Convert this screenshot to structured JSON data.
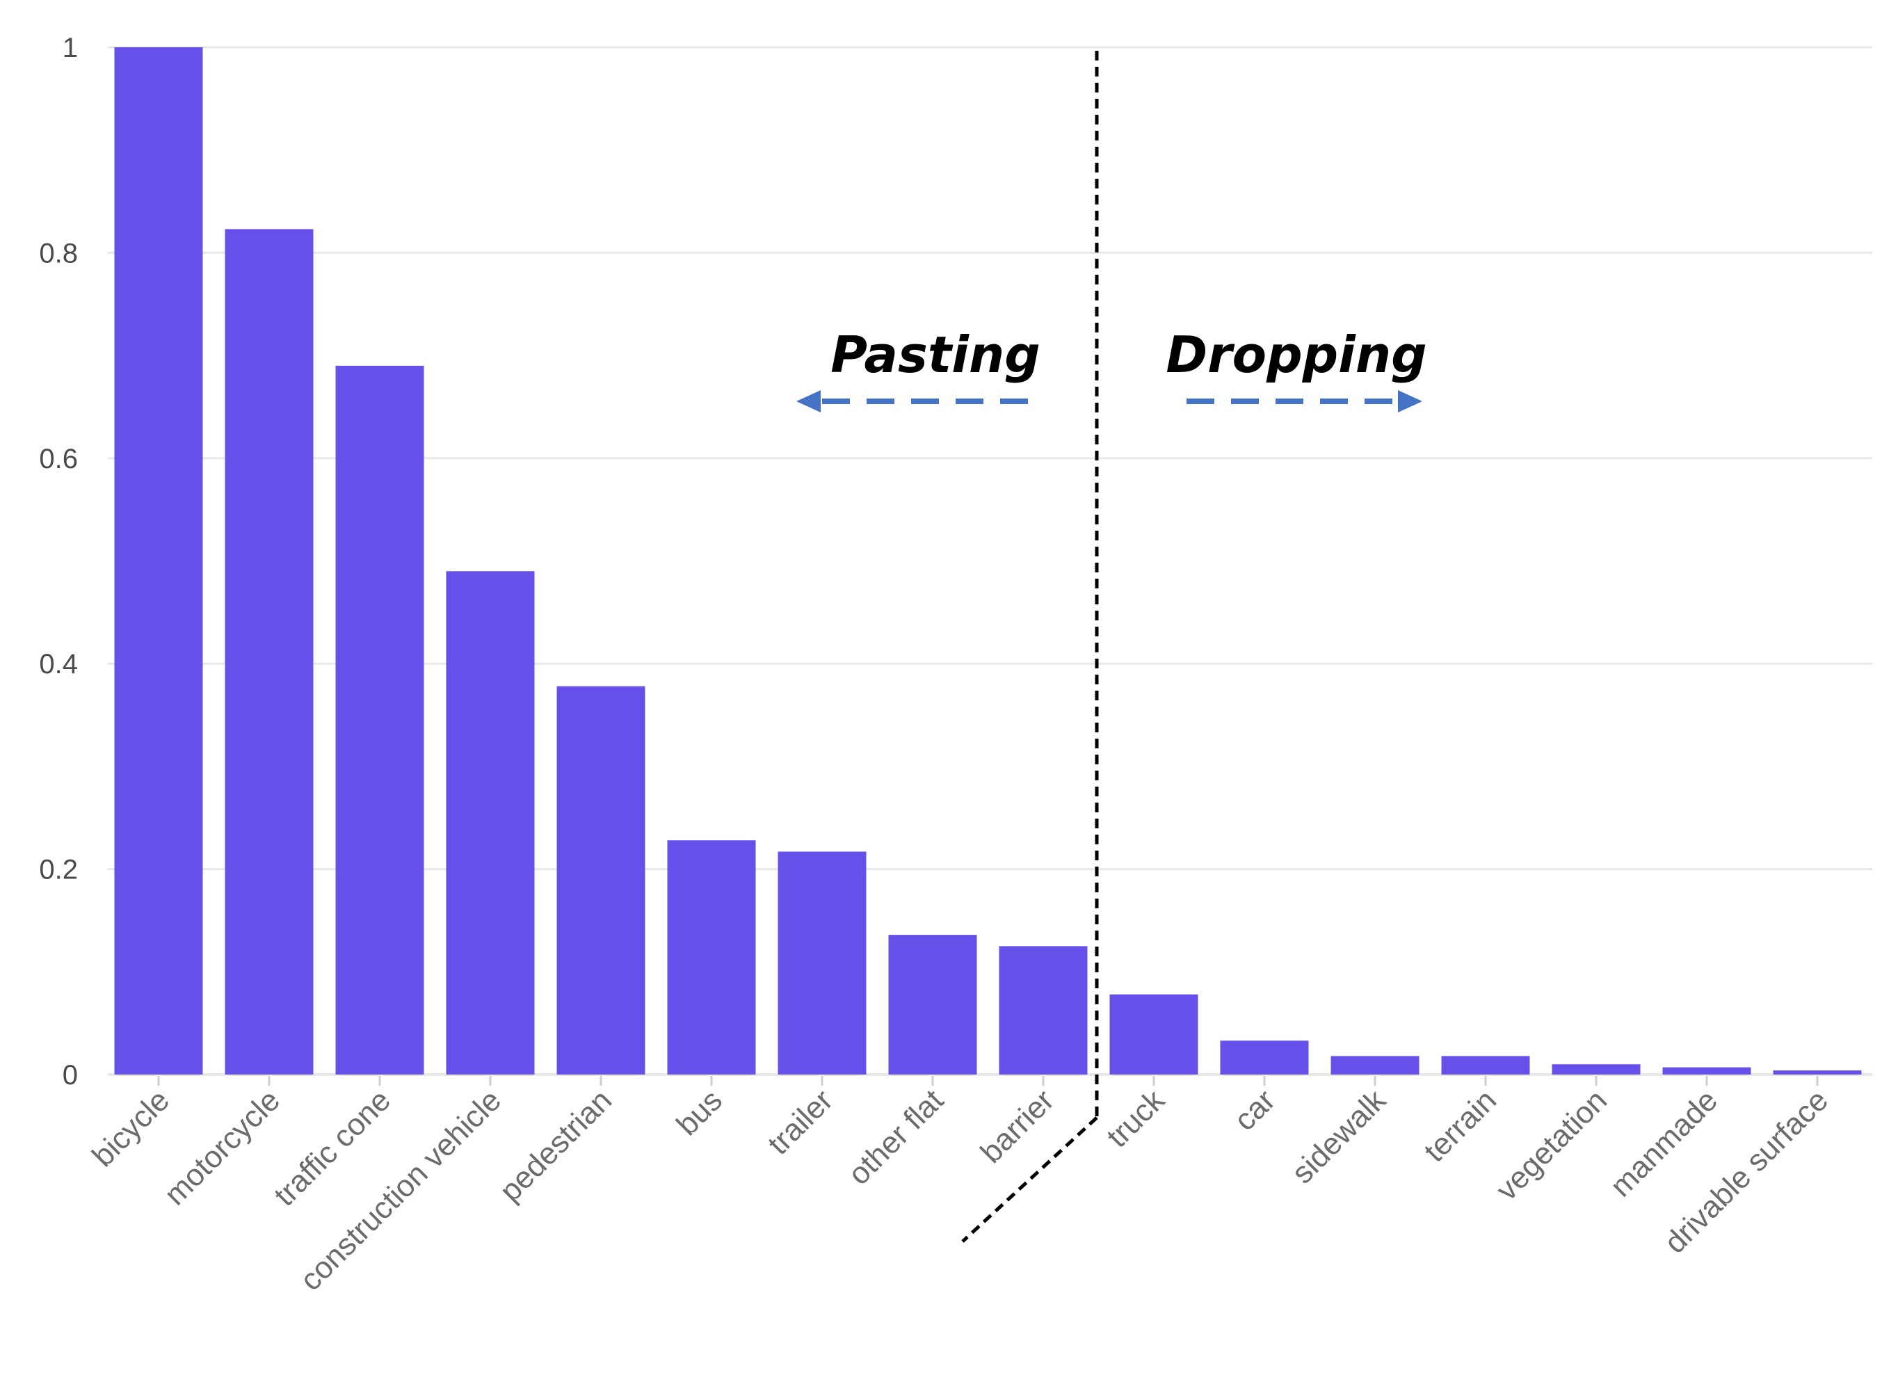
{
  "chart_data": {
    "type": "bar",
    "categories": [
      "bicycle",
      "motorcycle",
      "traffic cone",
      "construction vehicle",
      "pedestrian",
      "bus",
      "trailer",
      "other flat",
      "barrier",
      "truck",
      "car",
      "sidewalk",
      "terrain",
      "vegetation",
      "manmade",
      "drivable surface"
    ],
    "values": [
      1.0,
      0.823,
      0.69,
      0.49,
      0.378,
      0.228,
      0.217,
      0.136,
      0.125,
      0.078,
      0.033,
      0.018,
      0.018,
      0.01,
      0.007,
      0.004
    ],
    "ylim": [
      0,
      1
    ],
    "yticks": [
      0,
      0.2,
      0.4,
      0.6,
      0.8,
      1
    ],
    "ytick_labels": [
      "0",
      "0.2",
      "0.4",
      "0.6",
      "0.8",
      "1"
    ],
    "grid": true,
    "colors": {
      "bar": "#6650EA",
      "grid": "#e8e8e8",
      "arrow": "#4472C4",
      "divider": "#000000"
    },
    "annotations": [
      {
        "text": "Pasting",
        "direction": "left"
      },
      {
        "text": "Dropping",
        "direction": "right"
      }
    ]
  }
}
